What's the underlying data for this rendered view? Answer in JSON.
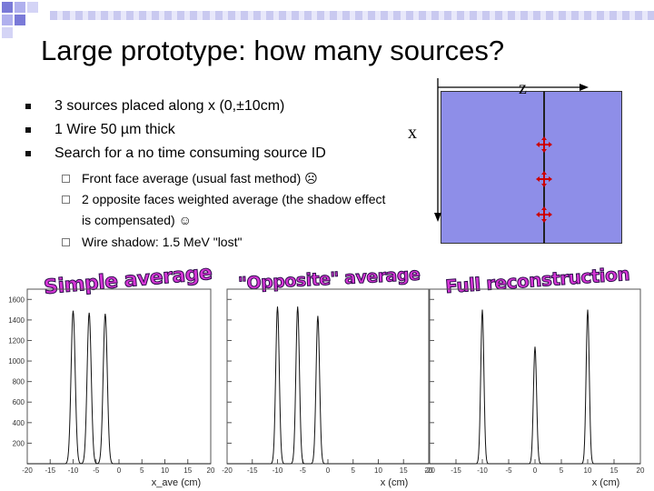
{
  "title": "Large prototype: how many sources?",
  "bullets": [
    "3 sources placed along x (0,±10cm)",
    "1 Wire 50 µm thick",
    "Search for a no time consuming source ID"
  ],
  "sub_bullets": [
    "Front face average (usual fast method) ☹",
    "2 opposite faces weighted average (the shadow effect",
    "is compensated) ☺",
    "Wire shadow: 1.5 MeV \"lost\""
  ],
  "diagram": {
    "axis_z": "z",
    "axis_x": "x",
    "detector_color": "#8e8ee8",
    "source_color": "#cc0000",
    "source_icon": "cross-arrows-icon"
  },
  "plot_titles": [
    "Simple average",
    "\"Opposite\" average",
    "Full reconstruction"
  ],
  "y_ticks": [
    "1600",
    "1400",
    "1200",
    "1000",
    "800",
    "600",
    "400",
    "200"
  ],
  "x_ticks": [
    "-20",
    "-15",
    "-10",
    "-5",
    "0",
    "5",
    "10",
    "15",
    "20"
  ],
  "x_labels": [
    "x_ave (cm)",
    "x (cm)",
    "x (cm)"
  ],
  "chart_data": [
    {
      "type": "line",
      "title": "Simple average",
      "xlabel": "x_ave (cm)",
      "ylabel": "",
      "xlim": [
        -20,
        20
      ],
      "ylim": [
        0,
        1700
      ],
      "peaks": [
        {
          "x": -10,
          "height": 1490,
          "width": 0.45
        },
        {
          "x": -6.5,
          "height": 1470,
          "width": 0.45
        },
        {
          "x": -3,
          "height": 1460,
          "width": 0.45
        }
      ]
    },
    {
      "type": "line",
      "title": "\"Opposite\" average",
      "xlabel": "x (cm)",
      "ylabel": "",
      "xlim": [
        -20,
        20
      ],
      "ylim": [
        0,
        1700
      ],
      "peaks": [
        {
          "x": -10,
          "height": 1530,
          "width": 0.35
        },
        {
          "x": -6,
          "height": 1530,
          "width": 0.35
        },
        {
          "x": -2,
          "height": 1440,
          "width": 0.35
        }
      ]
    },
    {
      "type": "line",
      "title": "Full reconstruction",
      "xlabel": "x (cm)",
      "ylabel": "",
      "xlim": [
        -20,
        20
      ],
      "ylim": [
        0,
        1700
      ],
      "peaks": [
        {
          "x": -10,
          "height": 1500,
          "width": 0.3
        },
        {
          "x": 0,
          "height": 1140,
          "width": 0.3
        },
        {
          "x": 10,
          "height": 1500,
          "width": 0.3
        }
      ]
    }
  ]
}
